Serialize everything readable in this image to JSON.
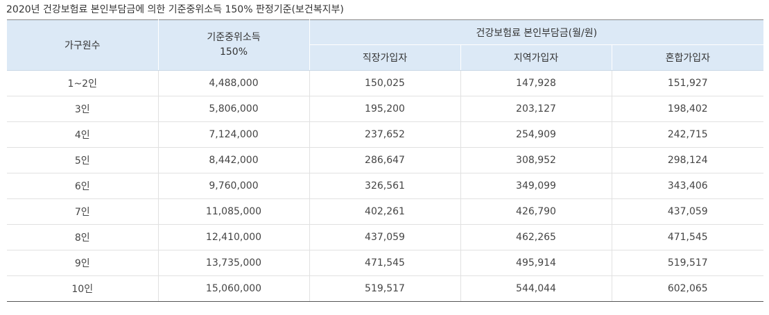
{
  "caption": "2020년 건강보험료 본인부담금에 의한 기준중위소득 150% 판정기준(보건복지부)",
  "table": {
    "headers": {
      "household": "가구원수",
      "income_line1": "기준중위소득",
      "income_line2": "150%",
      "premium_group": "건강보험료 본인부담금(월/원)",
      "employee": "직장가입자",
      "regional": "지역가입자",
      "mixed": "혼합가입자"
    },
    "rows": [
      {
        "household": "1~2인",
        "income": "4,488,000",
        "employee": "150,025",
        "regional": "147,928",
        "mixed": "151,927"
      },
      {
        "household": "3인",
        "income": "5,806,000",
        "employee": "195,200",
        "regional": "203,127",
        "mixed": "198,402"
      },
      {
        "household": "4인",
        "income": "7,124,000",
        "employee": "237,652",
        "regional": "254,909",
        "mixed": "242,715"
      },
      {
        "household": "5인",
        "income": "8,442,000",
        "employee": "286,647",
        "regional": "308,952",
        "mixed": "298,124"
      },
      {
        "household": "6인",
        "income": "9,760,000",
        "employee": "326,561",
        "regional": "349,099",
        "mixed": "343,406"
      },
      {
        "household": "7인",
        "income": "11,085,000",
        "employee": "402,261",
        "regional": "426,790",
        "mixed": "437,059"
      },
      {
        "household": "8인",
        "income": "12,410,000",
        "employee": "437,059",
        "regional": "462,265",
        "mixed": "471,545"
      },
      {
        "household": "9인",
        "income": "13,735,000",
        "employee": "471,545",
        "regional": "495,914",
        "mixed": "519,517"
      },
      {
        "household": "10인",
        "income": "15,060,000",
        "employee": "519,517",
        "regional": "544,044",
        "mixed": "602,065"
      }
    ]
  }
}
